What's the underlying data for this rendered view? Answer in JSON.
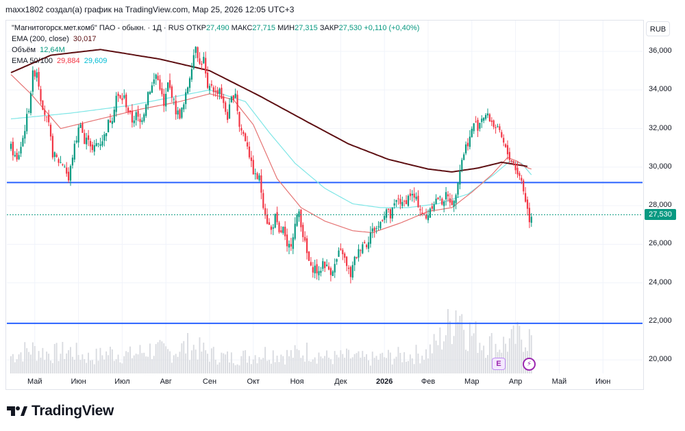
{
  "header": {
    "text": "maxx1802 создал(а) график на TradingView.com, Мар 25, 2026 12:05 UTC+3"
  },
  "legend": {
    "symbol": "\"Магнитогорск.мет.комб\" ПАО - обыкн. · 1Д · RUS",
    "open_label": "ОТКР",
    "open": "27,490",
    "high_label": "МАКС",
    "high": "27,715",
    "low_label": "МИН",
    "low": "27,315",
    "close_label": "ЗАКР",
    "close": "27,530",
    "change": "+0,110 (+0,40%)",
    "ema200_label": "EMA (200, close)",
    "ema200_value": "30,017",
    "volume_label": "Объём",
    "volume_value": "12,64M",
    "ema50100_label": "EMA 50/100",
    "ema50_value": "29,884",
    "ema100_value": "29,609"
  },
  "currency": "RUB",
  "last_price": "27,530",
  "colors": {
    "up": "#089981",
    "down": "#f23645",
    "ema200": "#5d0f12",
    "ema50": "#e57373",
    "ema100": "#7ee6e6",
    "hline": "#2962ff",
    "volume": "#d9dbe0"
  },
  "brand": {
    "name": "TradingView"
  },
  "chart_data": {
    "type": "candlestick",
    "ylim": [
      19300,
      37600
    ],
    "y_ticks": [
      "36,000",
      "34,000",
      "32,000",
      "30,000",
      "28,000",
      "26,000",
      "24,000",
      "22,000",
      "20,000"
    ],
    "y_tick_values": [
      36000,
      34000,
      32000,
      30000,
      28000,
      26000,
      24000,
      22000,
      20000
    ],
    "x_labels": [
      "Май",
      "Июн",
      "Июл",
      "Авг",
      "Сен",
      "Окт",
      "Ноя",
      "Дек",
      "2026",
      "Фев",
      "Мар",
      "Апр",
      "Май",
      "Июн"
    ],
    "x_label_bold": [
      false,
      false,
      false,
      false,
      false,
      false,
      false,
      false,
      true,
      false,
      false,
      false,
      false,
      false
    ],
    "x_label_bar_index": [
      12,
      34,
      56,
      78,
      100,
      122,
      144,
      166,
      188,
      210,
      232,
      254,
      276,
      298
    ],
    "horizontal_lines": [
      29200,
      21900
    ],
    "last_close": 27530,
    "close_path": [
      [
        0,
        31000
      ],
      [
        3,
        30300
      ],
      [
        6,
        31500
      ],
      [
        9,
        33100
      ],
      [
        11,
        34800
      ],
      [
        13,
        35000
      ],
      [
        15,
        33600
      ],
      [
        17,
        32800
      ],
      [
        19,
        32100
      ],
      [
        21,
        30700
      ],
      [
        24,
        30300
      ],
      [
        27,
        30100
      ],
      [
        29,
        29300
      ],
      [
        31,
        30600
      ],
      [
        33,
        31500
      ],
      [
        35,
        32400
      ],
      [
        37,
        31200
      ],
      [
        39,
        31600
      ],
      [
        41,
        30800
      ],
      [
        43,
        31200
      ],
      [
        45,
        31300
      ],
      [
        47,
        31600
      ],
      [
        49,
        32300
      ],
      [
        51,
        32600
      ],
      [
        53,
        33700
      ],
      [
        55,
        33500
      ],
      [
        57,
        33600
      ],
      [
        59,
        32900
      ],
      [
        61,
        32400
      ],
      [
        63,
        32700
      ],
      [
        65,
        32300
      ],
      [
        67,
        32900
      ],
      [
        69,
        33900
      ],
      [
        71,
        34200
      ],
      [
        73,
        34800
      ],
      [
        75,
        34200
      ],
      [
        77,
        33100
      ],
      [
        79,
        34300
      ],
      [
        81,
        33800
      ],
      [
        83,
        32900
      ],
      [
        85,
        32700
      ],
      [
        87,
        33200
      ],
      [
        89,
        34200
      ],
      [
        91,
        35300
      ],
      [
        93,
        36400
      ],
      [
        95,
        35300
      ],
      [
        97,
        35600
      ],
      [
        99,
        33900
      ],
      [
        101,
        34300
      ],
      [
        103,
        33800
      ],
      [
        105,
        34100
      ],
      [
        107,
        33200
      ],
      [
        109,
        32600
      ],
      [
        111,
        33500
      ],
      [
        113,
        33900
      ],
      [
        115,
        32100
      ],
      [
        117,
        31700
      ],
      [
        119,
        31200
      ],
      [
        121,
        30100
      ],
      [
        123,
        29500
      ],
      [
        125,
        29400
      ],
      [
        127,
        28100
      ],
      [
        129,
        27200
      ],
      [
        131,
        26700
      ],
      [
        133,
        27400
      ],
      [
        135,
        26500
      ],
      [
        137,
        26800
      ],
      [
        139,
        25700
      ],
      [
        141,
        26100
      ],
      [
        143,
        27000
      ],
      [
        145,
        27700
      ],
      [
        147,
        26500
      ],
      [
        149,
        25500
      ],
      [
        151,
        24700
      ],
      [
        153,
        24800
      ],
      [
        155,
        24400
      ],
      [
        157,
        25100
      ],
      [
        159,
        24800
      ],
      [
        161,
        24600
      ],
      [
        163,
        24900
      ],
      [
        165,
        25500
      ],
      [
        167,
        25600
      ],
      [
        169,
        24800
      ],
      [
        171,
        24400
      ],
      [
        173,
        25200
      ],
      [
        175,
        25600
      ],
      [
        177,
        26100
      ],
      [
        179,
        26000
      ],
      [
        181,
        26600
      ],
      [
        183,
        26800
      ],
      [
        185,
        26900
      ],
      [
        187,
        27400
      ],
      [
        189,
        27800
      ],
      [
        191,
        27400
      ],
      [
        193,
        28000
      ],
      [
        195,
        28400
      ],
      [
        197,
        28000
      ],
      [
        199,
        28300
      ],
      [
        201,
        28600
      ],
      [
        203,
        28400
      ],
      [
        205,
        28100
      ],
      [
        207,
        27600
      ],
      [
        209,
        27300
      ],
      [
        211,
        27900
      ],
      [
        213,
        28200
      ],
      [
        215,
        28400
      ],
      [
        217,
        28200
      ],
      [
        219,
        28500
      ],
      [
        221,
        28300
      ],
      [
        223,
        28100
      ],
      [
        225,
        29400
      ],
      [
        227,
        30400
      ],
      [
        229,
        31100
      ],
      [
        231,
        31500
      ],
      [
        233,
        32300
      ],
      [
        235,
        32100
      ],
      [
        237,
        32600
      ],
      [
        239,
        32700
      ],
      [
        241,
        32500
      ],
      [
        243,
        32200
      ],
      [
        245,
        31900
      ],
      [
        247,
        31500
      ],
      [
        249,
        30900
      ],
      [
        251,
        30500
      ],
      [
        253,
        30200
      ],
      [
        255,
        29700
      ],
      [
        257,
        29300
      ],
      [
        259,
        28300
      ],
      [
        261,
        27300
      ],
      [
        262,
        27530
      ]
    ],
    "ema200_path": [
      [
        0,
        34900
      ],
      [
        20,
        35800
      ],
      [
        45,
        36100
      ],
      [
        75,
        35600
      ],
      [
        100,
        35000
      ],
      [
        125,
        33700
      ],
      [
        150,
        32300
      ],
      [
        170,
        31200
      ],
      [
        190,
        30400
      ],
      [
        210,
        29900
      ],
      [
        222,
        29750
      ],
      [
        235,
        29950
      ],
      [
        247,
        30250
      ],
      [
        260,
        30040
      ]
    ],
    "ema100_path": [
      [
        0,
        32500
      ],
      [
        30,
        32800
      ],
      [
        60,
        33200
      ],
      [
        80,
        33600
      ],
      [
        100,
        34000
      ],
      [
        118,
        33400
      ],
      [
        130,
        31800
      ],
      [
        143,
        30200
      ],
      [
        158,
        28900
      ],
      [
        172,
        28100
      ],
      [
        186,
        27900
      ],
      [
        200,
        27900
      ],
      [
        215,
        28100
      ],
      [
        230,
        28600
      ],
      [
        243,
        29600
      ],
      [
        251,
        30300
      ],
      [
        257,
        30200
      ],
      [
        262,
        29600
      ]
    ],
    "ema50_path": [
      [
        0,
        34800
      ],
      [
        10,
        33800
      ],
      [
        25,
        32000
      ],
      [
        45,
        32500
      ],
      [
        65,
        33000
      ],
      [
        85,
        33400
      ],
      [
        100,
        33800
      ],
      [
        112,
        33500
      ],
      [
        122,
        32200
      ],
      [
        134,
        29400
      ],
      [
        146,
        27900
      ],
      [
        158,
        27200
      ],
      [
        172,
        26700
      ],
      [
        182,
        26600
      ],
      [
        196,
        27100
      ],
      [
        210,
        27700
      ],
      [
        222,
        27900
      ],
      [
        232,
        28700
      ],
      [
        242,
        29600
      ],
      [
        250,
        30500
      ],
      [
        255,
        30300
      ],
      [
        259,
        30000
      ],
      [
        262,
        29900
      ]
    ],
    "volume_profile": [
      [
        0,
        0.25
      ],
      [
        10,
        0.35
      ],
      [
        20,
        0.28
      ],
      [
        30,
        0.32
      ],
      [
        40,
        0.22
      ],
      [
        50,
        0.3
      ],
      [
        60,
        0.26
      ],
      [
        70,
        0.34
      ],
      [
        80,
        0.3
      ],
      [
        90,
        0.4
      ],
      [
        100,
        0.28
      ],
      [
        110,
        0.22
      ],
      [
        120,
        0.25
      ],
      [
        130,
        0.3
      ],
      [
        140,
        0.26
      ],
      [
        150,
        0.32
      ],
      [
        160,
        0.22
      ],
      [
        170,
        0.24
      ],
      [
        180,
        0.2
      ],
      [
        190,
        0.24
      ],
      [
        200,
        0.26
      ],
      [
        210,
        0.3
      ],
      [
        218,
        0.55
      ],
      [
        222,
        0.75
      ],
      [
        225,
        1.0
      ],
      [
        230,
        0.6
      ],
      [
        238,
        0.45
      ],
      [
        245,
        0.4
      ],
      [
        252,
        0.45
      ],
      [
        258,
        0.55
      ],
      [
        262,
        0.5
      ]
    ]
  }
}
